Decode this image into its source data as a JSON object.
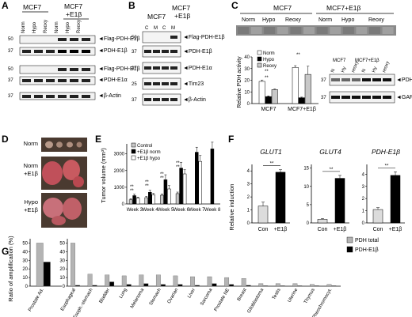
{
  "panels": {
    "A": "A",
    "B": "B",
    "C": "C",
    "D": "D",
    "E": "E",
    "F": "F",
    "G": "G"
  },
  "panelA": {
    "header_mcf7": "MCF7",
    "header_mcf7_e1b": "MCF7 +E1β",
    "cols": [
      "Norm",
      "Hypo",
      "Reoxy",
      "Norm",
      "Hypo",
      "Reoxy"
    ],
    "rows": [
      {
        "mw": "50",
        "label": "Flag-PDH-E1β"
      },
      {
        "mw": "37",
        "label": "PDH-E1β"
      },
      {
        "mw": "50",
        "label": "Flag-PDH-E1β"
      },
      {
        "mw": "37",
        "label": "PDH-E1α"
      },
      {
        "mw": "37",
        "label": "β-Actin"
      }
    ]
  },
  "panelB": {
    "header_mcf7": "MCF7",
    "header_mcf7_e1b": "MCF7 +E1β",
    "cols": [
      "C",
      "M",
      "C",
      "M"
    ],
    "rows": [
      {
        "mw": "50",
        "label": "Flag-PDH-E1β"
      },
      {
        "mw": "37",
        "label": "PDH-E1β"
      },
      {
        "mw": "37",
        "label": "PDH-E1α"
      },
      {
        "mw": "25",
        "label": "Tim23"
      },
      {
        "mw": "37",
        "label": "β-Actin"
      }
    ]
  },
  "panelC": {
    "header_mcf7": "MCF7",
    "header_mcf7_e1b": "MCF7+E1β",
    "conds": [
      "Norm",
      "Hypo",
      "Reoxy",
      "Norm",
      "Hypo",
      "Reoxy"
    ],
    "blot_header_mcf7": "MCF7",
    "blot_header_e1b": "MCF7+E1β",
    "blot_cols": [
      "N",
      "Hy",
      "reoxy",
      "N",
      "Hy",
      "reoxy"
    ],
    "blot_rows": [
      {
        "mw": "37",
        "label": "PDH-E1β"
      },
      {
        "mw": "37",
        "label": "GAPDH"
      }
    ]
  },
  "panelD": {
    "rows": [
      "Norm",
      "Norm +E1β",
      "Hypo +E1β"
    ]
  },
  "panelF": {
    "ylabel": "Relative induction",
    "sig": "**",
    "genes": [
      "GLUT1",
      "GLUT4",
      "PDH-E1β"
    ],
    "xlabels": [
      "Con",
      "+E1β"
    ]
  },
  "chart_data": [
    {
      "id": "C-bar",
      "type": "bar",
      "ylabel": "Relative PDH activity",
      "categories": [
        "MCF7",
        "MCF7+E1β"
      ],
      "series": [
        {
          "name": "Norm",
          "values": [
            19,
            31
          ],
          "color": "#ffffff"
        },
        {
          "name": "Hypo",
          "values": [
            6,
            5
          ],
          "color": "#000000"
        },
        {
          "name": "Reoxy",
          "values": [
            12,
            25
          ],
          "color": "#c8c8c8"
        }
      ],
      "errors": [
        [
          1.2,
          1.5
        ],
        [
          0.6,
          0.5
        ],
        [
          0.5,
          7
        ]
      ],
      "yticks": [
        0,
        10,
        20,
        30,
        40
      ],
      "ylim": [
        0,
        40
      ],
      "sig": "**"
    },
    {
      "id": "E-bar",
      "type": "bar",
      "ylabel": "Tumor volume (mm³)",
      "categories": [
        "Week 3",
        "Week 4",
        "Week 5",
        "Week 6",
        "Week 7",
        "Week 8"
      ],
      "series": [
        {
          "name": "Control",
          "values": [
            250,
            380,
            520,
            620,
            null,
            null
          ],
          "color": "#c8c8c8"
        },
        {
          "name": "+E1β norm",
          "values": [
            500,
            700,
            1450,
            2150,
            3100,
            3300
          ],
          "color": "#000000"
        },
        {
          "name": "+E1β hypo",
          "values": [
            350,
            550,
            900,
            1800,
            2550,
            null
          ],
          "color": "#ffffff"
        }
      ],
      "errors": [
        [
          60,
          70,
          80,
          90,
          null,
          null
        ],
        [
          80,
          120,
          300,
          350,
          300,
          400
        ],
        [
          60,
          80,
          200,
          250,
          350,
          null
        ]
      ],
      "yticks": [
        0,
        1000,
        2000,
        3000
      ],
      "ylim": [
        0,
        3600
      ],
      "sig": "**"
    },
    {
      "id": "F-GLUT1",
      "type": "bar",
      "categories": [
        "Con",
        "+E1β"
      ],
      "values": [
        1.3,
        3.9
      ],
      "errors": [
        0.3,
        0.2
      ],
      "yticks": [
        0,
        1,
        2,
        3,
        4
      ],
      "ylim": [
        0,
        4.5
      ]
    },
    {
      "id": "F-GLUT4",
      "type": "bar",
      "categories": [
        "Con",
        "+E1β"
      ],
      "values": [
        1.0,
        12.2
      ],
      "errors": [
        0.2,
        0.8
      ],
      "yticks": [
        0,
        5,
        10,
        15
      ],
      "ylim": [
        0,
        16
      ]
    },
    {
      "id": "F-PDH",
      "type": "bar",
      "categories": [
        "Con",
        "+E1β"
      ],
      "values": [
        1.1,
        3.9
      ],
      "errors": [
        0.15,
        0.3
      ],
      "yticks": [
        0,
        1,
        2,
        3,
        4
      ],
      "ylim": [
        0,
        4.8
      ]
    },
    {
      "id": "G-bar",
      "type": "bar",
      "ylabel": "Ratio of amplification (%)",
      "categories": [
        "Prostate Ad.",
        "Esophageal",
        "Esoph.-stomach",
        "Bladder",
        "Lung",
        "Melanoma",
        "Stomach",
        "Ovarian",
        "Liver",
        "Sarcoma",
        "Prostate NE",
        "Breast",
        "Glioblastoma",
        "Testis",
        "Uterine",
        "Thymus",
        "Pheochromocyt."
      ],
      "series": [
        {
          "name": "PDH total",
          "values": [
            50,
            50,
            14,
            13,
            12,
            13,
            13,
            12,
            11,
            11,
            10,
            9,
            3,
            3,
            3,
            2,
            2
          ],
          "color": "#b4b4b4"
        },
        {
          "name": "PDH-E1β",
          "values": [
            28,
            1,
            1,
            5,
            2,
            3,
            2,
            2,
            1,
            3,
            2,
            1,
            0.5,
            0.5,
            0.5,
            0.5,
            0.5
          ],
          "color": "#000000"
        }
      ],
      "yticks": [
        0,
        10,
        20,
        30,
        40,
        50
      ],
      "ylim": [
        0,
        55
      ]
    }
  ]
}
